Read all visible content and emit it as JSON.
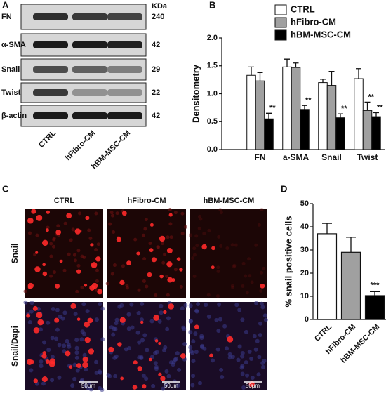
{
  "panel_labels": [
    "A",
    "B",
    "C",
    "D"
  ],
  "blot": {
    "kda_header": "KDa",
    "rows": [
      {
        "label": "FN",
        "kda": 240
      },
      {
        "label": "α-SMA",
        "kda": 42
      },
      {
        "label": "Snail",
        "kda": 29
      },
      {
        "label": "Twist",
        "kda": 22
      },
      {
        "label": "β-actin",
        "kda": 42
      }
    ],
    "lanes": [
      "CTRL",
      "hFibro-CM",
      "hBM-MSC-CM"
    ]
  },
  "chart_data": [
    {
      "type": "grouped-bar",
      "y_label": "Densitometry",
      "categories": [
        "FN",
        "a-SMA",
        "Snail",
        "Twist"
      ],
      "series": [
        {
          "name": "CTRL",
          "color": "#ffffff",
          "values": [
            1.33,
            1.48,
            1.2,
            1.27
          ],
          "errors": [
            0.15,
            0.14,
            0.06,
            0.18
          ],
          "markers": [
            null,
            null,
            null,
            null
          ]
        },
        {
          "name": "hFibro-CM",
          "color": "#a0a0a0",
          "values": [
            1.23,
            1.47,
            1.15,
            0.7
          ],
          "errors": [
            0.15,
            0.08,
            0.25,
            0.15
          ],
          "markers": [
            null,
            null,
            null,
            "**"
          ]
        },
        {
          "name": "hBM-MSC-CM",
          "color": "#000000",
          "values": [
            0.55,
            0.72,
            0.57,
            0.59
          ],
          "errors": [
            0.1,
            0.07,
            0.07,
            0.07
          ],
          "markers": [
            "**",
            "**",
            "**",
            "**"
          ]
        }
      ],
      "ylim": [
        0,
        2
      ],
      "yticks": [
        {
          "value": 0,
          "label": "0.0"
        },
        0.5,
        {
          "value": 1,
          "label": "1.0"
        },
        1.5,
        {
          "value": 2,
          "label": "2.0"
        }
      ]
    },
    {
      "type": "bar",
      "y_label": "% snail positive cells",
      "categories": [
        "CTRL",
        "hFibro-CM",
        "hBM-MSC-CM"
      ],
      "values": [
        37,
        29,
        10.3
      ],
      "errors": [
        4.5,
        6.5,
        1.7
      ],
      "colors": [
        "#ffffff",
        "#a0a0a0",
        "#000000"
      ],
      "markers": [
        null,
        null,
        "***"
      ],
      "ylim": [
        0,
        50
      ],
      "yticks": [
        0,
        10,
        20,
        30,
        40,
        50
      ]
    }
  ],
  "microscopy": {
    "columns": [
      "CTRL",
      "hFibro-CM",
      "hBM-MSC-CM"
    ],
    "rows": [
      "Snail",
      "Snail/Dapi"
    ],
    "scale_bar": "50μm"
  }
}
